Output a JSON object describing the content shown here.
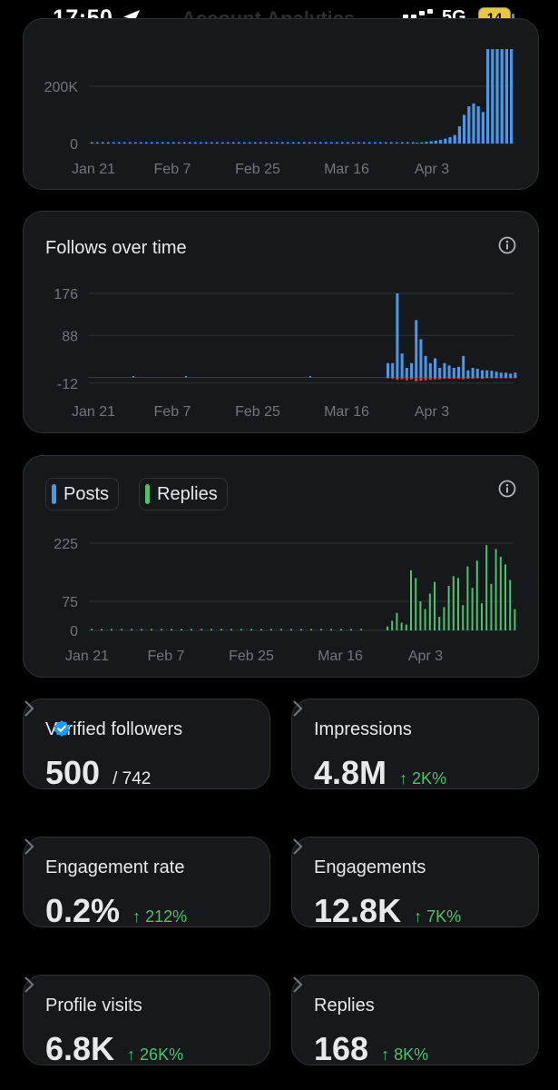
{
  "status_bar": {
    "time": "17:50",
    "network": "5G",
    "battery": "14",
    "title_ghost": "Account Analytics"
  },
  "colors": {
    "posts": "#4a99e9",
    "replies": "#4bc26e",
    "negative": "#e0403b",
    "positive_change": "#4bc26e"
  },
  "impressions_chart": {
    "chart_data": {
      "type": "bar",
      "y_ticks": [
        "200K",
        "0"
      ],
      "y_tick_values": [
        200000,
        0
      ],
      "x_ticks": [
        "Jan 21",
        "Feb 7",
        "Feb 25",
        "Mar 16",
        "Apr 3"
      ],
      "ylim": [
        0,
        330000
      ],
      "series": [
        {
          "values": []
        }
      ],
      "tail_values": [
        3000,
        4000,
        6000,
        8000,
        10000,
        13000,
        17000,
        22000,
        30000,
        60000,
        100000,
        130000,
        140000,
        130000,
        110000,
        330000,
        330000,
        330000,
        330000,
        330000,
        330000
      ]
    }
  },
  "follows_chart": {
    "title": "Follows over time",
    "chart_data": {
      "type": "bar",
      "y_ticks": [
        "176",
        "88",
        "-12"
      ],
      "y_tick_values": [
        176,
        88,
        -12
      ],
      "x_ticks": [
        "Jan 21",
        "Feb 7",
        "Feb 25",
        "Mar 16",
        "Apr 3"
      ],
      "ylim": [
        -12,
        190
      ],
      "gains": [
        30,
        30,
        176,
        50,
        20,
        30,
        120,
        80,
        45,
        30,
        40,
        20,
        30,
        25,
        20,
        22,
        45,
        15,
        20,
        18,
        15,
        15,
        14,
        12,
        10,
        10,
        8,
        10
      ],
      "losses": [
        -2,
        -3,
        -5,
        -4,
        -6,
        -4,
        -8,
        -7,
        -6,
        -5,
        -4,
        -4,
        -3,
        -3,
        -3,
        -3,
        -4,
        -3,
        -3,
        -2,
        -3,
        -2,
        -2,
        -2,
        -2,
        -2,
        -2,
        -2
      ]
    }
  },
  "posts_replies_chart": {
    "legend": [
      {
        "label": "Posts"
      },
      {
        "label": "Replies"
      }
    ],
    "chart_data": {
      "type": "bar",
      "y_ticks": [
        "225",
        "75",
        "0"
      ],
      "y_tick_values": [
        225,
        75,
        0
      ],
      "x_ticks": [
        "Jan 21",
        "Feb 7",
        "Feb 25",
        "Mar 16",
        "Apr 3"
      ],
      "ylim": [
        0,
        225
      ],
      "series": [
        {
          "name": "Posts",
          "values": []
        },
        {
          "name": "Replies",
          "values": [
            10,
            25,
            45,
            20,
            15,
            155,
            135,
            75,
            55,
            95,
            125,
            35,
            60,
            115,
            140,
            135,
            65,
            165,
            110,
            180,
            70,
            220,
            120,
            210,
            190,
            170,
            130,
            55
          ]
        }
      ]
    }
  },
  "stats": [
    {
      "label": "Verified followers",
      "value": "500",
      "sub": "/ 742",
      "change": "",
      "verified": true
    },
    {
      "label": "Impressions",
      "value": "4.8M",
      "sub": "",
      "change": "↑ 2K%"
    },
    {
      "label": "Engagement rate",
      "value": "0.2%",
      "sub": "",
      "change": "↑ 212%"
    },
    {
      "label": "Engagements",
      "value": "12.8K",
      "sub": "",
      "change": "↑ 7K%"
    },
    {
      "label": "Profile visits",
      "value": "6.8K",
      "sub": "",
      "change": "↑ 26K%"
    },
    {
      "label": "Replies",
      "value": "168",
      "sub": "",
      "change": "↑ 8K%"
    }
  ]
}
